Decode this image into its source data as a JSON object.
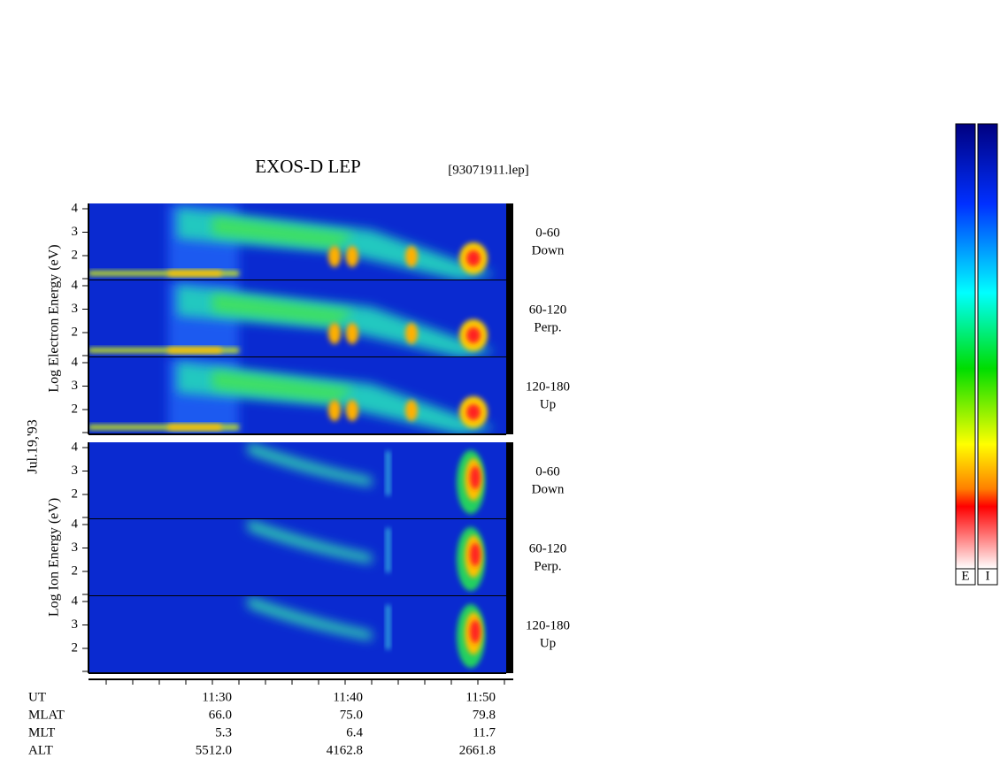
{
  "header": {
    "title": "EXOS-D LEP",
    "file": "[93071911.lep]"
  },
  "date": "Jul.19,'93",
  "groups": [
    {
      "label": "Log Electron Energy (eV)",
      "panels": [
        {
          "angle": "0-60",
          "direction": "Down"
        },
        {
          "angle": "60-120",
          "direction": "Perp."
        },
        {
          "angle": "120-180",
          "direction": "Up"
        }
      ]
    },
    {
      "label": "Log Ion Energy (eV)",
      "panels": [
        {
          "angle": "0-60",
          "direction": "Down"
        },
        {
          "angle": "60-120",
          "direction": "Perp."
        },
        {
          "angle": "120-180",
          "direction": "Up"
        }
      ]
    }
  ],
  "energy_ticks": [
    "4",
    "3",
    "2"
  ],
  "ephemeris": {
    "rows": [
      {
        "name": "UT",
        "values": [
          "11:30",
          "11:40",
          "11:50"
        ]
      },
      {
        "name": "MLAT",
        "values": [
          "66.0",
          "75.0",
          "79.8"
        ]
      },
      {
        "name": "MLT",
        "values": [
          "5.3",
          "6.4",
          "11.7"
        ]
      },
      {
        "name": "ALT",
        "values": [
          "5512.0",
          "4162.8",
          "2661.8"
        ]
      }
    ]
  },
  "colorbars": [
    "E",
    "I"
  ]
}
